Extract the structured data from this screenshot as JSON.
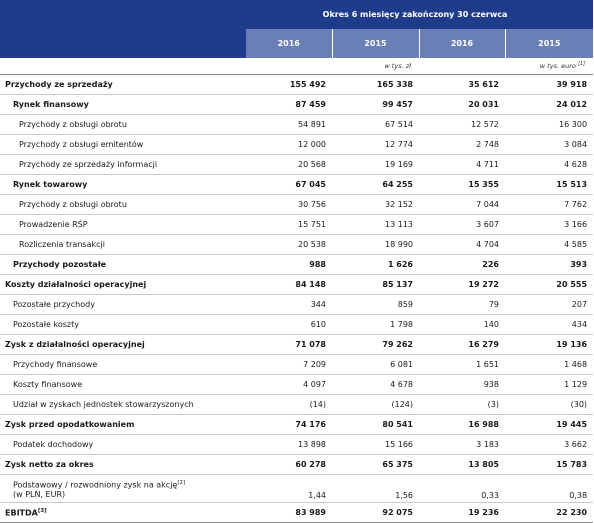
{
  "header": {
    "period": "Okres 6 miesięcy zakończony 30 czerwca",
    "years": [
      "2016",
      "2015",
      "2016",
      "2015"
    ],
    "unit_pln": "w tys. zł",
    "unit_eur": "w tys. euro",
    "unit_eur_note": "[1]"
  },
  "rows": [
    {
      "label": "Przychody ze sprzedaży",
      "note": "",
      "values": [
        "155 492",
        "165 338",
        "35 612",
        "39 918"
      ]
    },
    {
      "label": "Rynek finansowy",
      "note": "",
      "values": [
        "87 459",
        "99 457",
        "20 031",
        "24 012"
      ]
    },
    {
      "label": "Przychody z obsługi obrotu",
      "note": "",
      "values": [
        "54 891",
        "67 514",
        "12 572",
        "16 300"
      ]
    },
    {
      "label": "Przychody z obsługi emitentów",
      "note": "",
      "values": [
        "12 000",
        "12 774",
        "2 748",
        "3 084"
      ]
    },
    {
      "label": "Przychody ze sprzedaży informacji",
      "note": "",
      "values": [
        "20 568",
        "19 169",
        "4 711",
        "4 628"
      ]
    },
    {
      "label": "Rynek towarowy",
      "note": "",
      "values": [
        "67 045",
        "64 255",
        "15 355",
        "15 513"
      ]
    },
    {
      "label": "Przychody z obsługi obrotu",
      "note": "",
      "values": [
        "30 756",
        "32 152",
        "7 044",
        "7 762"
      ]
    },
    {
      "label": "Prowadzenie RŚP",
      "note": "",
      "values": [
        "15 751",
        "13 113",
        "3 607",
        "3 166"
      ]
    },
    {
      "label": "Rozliczenia transakcji",
      "note": "",
      "values": [
        "20 538",
        "18 990",
        "4 704",
        "4 585"
      ]
    },
    {
      "label": "Przychody pozostałe",
      "note": "",
      "values": [
        "988",
        "1 626",
        "226",
        "393"
      ]
    },
    {
      "label": "Koszty działalności operacyjnej",
      "note": "",
      "values": [
        "84 148",
        "85 137",
        "19 272",
        "20 555"
      ]
    },
    {
      "label": "Pozostałe przychody",
      "note": "",
      "values": [
        "344",
        "859",
        "79",
        "207"
      ]
    },
    {
      "label": "Pozostałe koszty",
      "note": "",
      "values": [
        "610",
        "1 798",
        "140",
        "434"
      ]
    },
    {
      "label": "Zysk z działalności operacyjnej",
      "note": "",
      "values": [
        "71 078",
        "79 262",
        "16 279",
        "19 136"
      ]
    },
    {
      "label": "Przychody finansowe",
      "note": "",
      "values": [
        "7 209",
        "6 081",
        "1 651",
        "1 468"
      ]
    },
    {
      "label": "Koszty finansowe",
      "note": "",
      "values": [
        "4 097",
        "4 678",
        "938",
        "1 129"
      ]
    },
    {
      "label": "Udział w zyskach jednostek stowarzyszonych",
      "note": "",
      "values": [
        "(14)",
        "(124)",
        "(3)",
        "(30)"
      ]
    },
    {
      "label": "Zysk przed opodatkowaniem",
      "note": "",
      "values": [
        "74 176",
        "80 541",
        "16 988",
        "19 445"
      ]
    },
    {
      "label": "Podatek dochodowy",
      "note": "",
      "values": [
        "13 898",
        "15 166",
        "3 183",
        "3 662"
      ]
    },
    {
      "label": "Zysk netto za okres",
      "note": "",
      "values": [
        "60 278",
        "65 375",
        "13 805",
        "15 783"
      ]
    },
    {
      "label": "Podstawowy / rozwodniony zysk na akcję",
      "note": "[2]",
      "label2": "(w PLN, EUR)",
      "values": [
        "1,44",
        "1,56",
        "0,33",
        "0,38"
      ]
    },
    {
      "label": "EBITDA",
      "note": "[3]",
      "values": [
        "83 989",
        "92 075",
        "19 236",
        "22 230"
      ]
    }
  ]
}
